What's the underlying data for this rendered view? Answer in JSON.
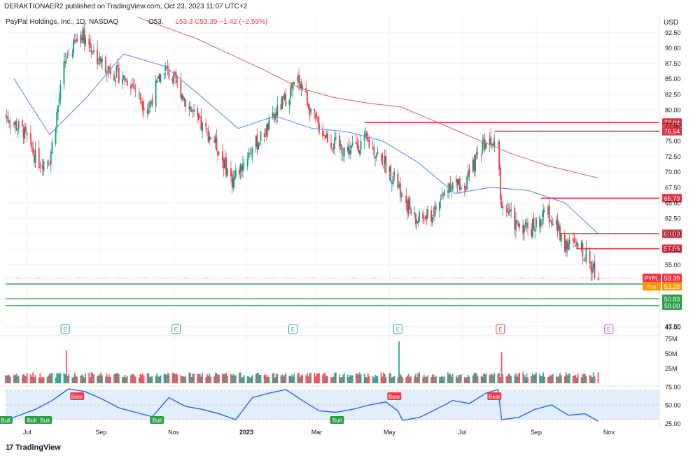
{
  "header": {
    "published_line": "DERAKTIONAER2 published on TradingView.com, Oct 23, 2023 11:07 UTC+2",
    "symbol_line": "PayPal Holdings, Inc., 1D, NASDAQ",
    "ohlc_fragment": "O53.",
    "close_fragment": "L53.3",
    "last": "C53.39",
    "change": "−1.42 (−2.59%)"
  },
  "currency_label": "USD",
  "branding": {
    "logo": "17",
    "name": "TradingView"
  },
  "colors": {
    "up": "#089981",
    "down": "#f23645",
    "ma_short": "#5b8def",
    "ma_long": "#e06a6a",
    "resistance": "#e0313f",
    "support": "#2e9e46",
    "rsi_line": "#2962ff",
    "rsi_band": "#e3eefc",
    "axis_text": "#131722",
    "grid": "#f0f3fa",
    "pre_label": "#ff9800",
    "earnings_green": "#26a69a",
    "earnings_red": "#f23645",
    "earnings_future": "#e040fb"
  },
  "chart_data": [
    {
      "type": "candlestick",
      "title": "PayPal Holdings, Inc., 1D, NASDAQ",
      "xlabel": "",
      "ylabel": "",
      "x_ticks": [
        "Jul",
        "Sep",
        "Nov",
        "2023",
        "Mar",
        "May",
        "Jul",
        "Sep",
        "Nov"
      ],
      "y_ticks": [
        "92.50",
        "90.00",
        "87.50",
        "85.00",
        "82.50",
        "80.00",
        "77.50",
        "75.00",
        "72.50",
        "70.00",
        "67.50",
        "65.00",
        "62.50",
        "60.00",
        "57.50",
        "55.00",
        "47.50",
        "45.00"
      ],
      "ylim": [
        45,
        95
      ],
      "approx_close_path": [
        {
          "date": "2022-06-13",
          "close": 79.0
        },
        {
          "date": "2022-06-28",
          "close": 76.5
        },
        {
          "date": "2022-07-10",
          "close": 71.5
        },
        {
          "date": "2022-07-20",
          "close": 72.0
        },
        {
          "date": "2022-08-02",
          "close": 88.0
        },
        {
          "date": "2022-08-16",
          "close": 92.5
        },
        {
          "date": "2022-08-30",
          "close": 88.0
        },
        {
          "date": "2022-09-12",
          "close": 86.0
        },
        {
          "date": "2022-09-26",
          "close": 84.5
        },
        {
          "date": "2022-10-10",
          "close": 80.0
        },
        {
          "date": "2022-10-24",
          "close": 87.0
        },
        {
          "date": "2022-11-07",
          "close": 83.0
        },
        {
          "date": "2022-11-21",
          "close": 78.0
        },
        {
          "date": "2022-12-05",
          "close": 75.0
        },
        {
          "date": "2022-12-20",
          "close": 68.5
        },
        {
          "date": "2023-01-03",
          "close": 73.0
        },
        {
          "date": "2023-01-17",
          "close": 76.5
        },
        {
          "date": "2023-01-31",
          "close": 81.0
        },
        {
          "date": "2023-02-14",
          "close": 85.0
        },
        {
          "date": "2023-02-28",
          "close": 78.0
        },
        {
          "date": "2023-03-14",
          "close": 74.5
        },
        {
          "date": "2023-03-28",
          "close": 73.5
        },
        {
          "date": "2023-04-11",
          "close": 75.0
        },
        {
          "date": "2023-04-25",
          "close": 72.0
        },
        {
          "date": "2023-05-09",
          "close": 67.5
        },
        {
          "date": "2023-05-23",
          "close": 62.0
        },
        {
          "date": "2023-06-06",
          "close": 63.0
        },
        {
          "date": "2023-06-20",
          "close": 68.0
        },
        {
          "date": "2023-07-04",
          "close": 68.0
        },
        {
          "date": "2023-07-18",
          "close": 74.5
        },
        {
          "date": "2023-07-31",
          "close": 76.0
        },
        {
          "date": "2023-08-02",
          "close": 65.5
        },
        {
          "date": "2023-08-15",
          "close": 61.5
        },
        {
          "date": "2023-08-28",
          "close": 61.0
        },
        {
          "date": "2023-09-11",
          "close": 63.5
        },
        {
          "date": "2023-09-25",
          "close": 58.5
        },
        {
          "date": "2023-10-09",
          "close": 57.5
        },
        {
          "date": "2023-10-23",
          "close": 53.39
        }
      ],
      "moving_averages": [
        {
          "name": "",
          "points": [
            {
              "date": "2022-06-20",
              "value": 85.0
            },
            {
              "date": "2022-07-20",
              "value": 76.0
            },
            {
              "date": "2022-08-20",
              "value": 82.0
            },
            {
              "date": "2022-09-20",
              "value": 89.0
            },
            {
              "date": "2022-10-25",
              "value": 87.0
            },
            {
              "date": "2022-11-25",
              "value": 82.0
            },
            {
              "date": "2022-12-25",
              "value": 77.0
            },
            {
              "date": "2023-01-25",
              "value": 79.0
            },
            {
              "date": "2023-02-25",
              "value": 77.0
            },
            {
              "date": "2023-03-25",
              "value": 76.5
            },
            {
              "date": "2023-04-25",
              "value": 75.0
            },
            {
              "date": "2023-05-25",
              "value": 71.5
            },
            {
              "date": "2023-06-25",
              "value": 66.5
            },
            {
              "date": "2023-07-25",
              "value": 67.5
            },
            {
              "date": "2023-08-25",
              "value": 67.0
            },
            {
              "date": "2023-09-25",
              "value": 65.0
            },
            {
              "date": "2023-10-23",
              "value": 60.0
            }
          ]
        },
        {
          "name": "",
          "points": [
            {
              "date": "2022-10-01",
              "value": 95.0
            },
            {
              "date": "2022-11-20",
              "value": 91.5
            },
            {
              "date": "2023-01-15",
              "value": 86.5
            },
            {
              "date": "2023-02-15",
              "value": 83.5
            },
            {
              "date": "2023-03-15",
              "value": 82.0
            },
            {
              "date": "2023-04-15",
              "value": 81.0
            },
            {
              "date": "2023-05-10",
              "value": 80.5
            },
            {
              "date": "2023-06-10",
              "value": 78.0
            },
            {
              "date": "2023-07-10",
              "value": 75.5
            },
            {
              "date": "2023-08-10",
              "value": 73.0
            },
            {
              "date": "2023-09-10",
              "value": 71.0
            },
            {
              "date": "2023-10-23",
              "value": 69.0
            }
          ]
        }
      ],
      "resistance_lines": [
        {
          "label": "77.94",
          "value": 77.94,
          "from_date": "2023-04-10"
        },
        {
          "label": "76.54",
          "value": 76.54,
          "from_date": "2023-07-28"
        },
        {
          "label": "65.73",
          "value": 65.73,
          "from_date": "2023-09-05"
        },
        {
          "label": "60.00",
          "value": 60.0,
          "from_date": "2023-09-20"
        },
        {
          "label": "57.59",
          "value": 57.59,
          "from_date": "2023-10-05"
        }
      ],
      "support_lines": [
        {
          "label": "52.64",
          "value": 52.64
        },
        {
          "label": "50.83",
          "value": 50.83
        },
        {
          "label": "50.00",
          "value": 50.0
        }
      ],
      "price_labels": [
        {
          "name": "PYPL",
          "value": "53.39"
        },
        {
          "name": "Pre",
          "value": "53.28"
        }
      ],
      "earnings_markers": [
        {
          "date": "2022-08-02",
          "label": "E",
          "kind": "reported_beat"
        },
        {
          "date": "2022-11-03",
          "label": "E",
          "kind": "reported_beat"
        },
        {
          "date": "2023-02-09",
          "label": "E",
          "kind": "reported_beat"
        },
        {
          "date": "2023-05-08",
          "label": "E",
          "kind": "reported_beat"
        },
        {
          "date": "2023-08-02",
          "label": "E",
          "kind": "reported_miss"
        },
        {
          "date": "2023-11-01",
          "label": "E",
          "kind": "upcoming"
        }
      ]
    },
    {
      "type": "bar",
      "title": "",
      "xlabel": "",
      "ylabel": "",
      "y_ticks": [
        "75M",
        "50M",
        "25M"
      ],
      "ylim": [
        0,
        75
      ],
      "y_unit": "M",
      "spikes": [
        {
          "date": "2022-08-03",
          "value": 55
        },
        {
          "date": "2023-05-09",
          "value": 70
        },
        {
          "date": "2023-08-03",
          "value": 52
        }
      ],
      "typical_value": 13
    },
    {
      "type": "line",
      "title": "",
      "xlabel": "",
      "ylabel": "",
      "y_ticks": [
        "75.00",
        "50.00",
        "25.00"
      ],
      "ylim": [
        25,
        80
      ],
      "band": [
        30,
        70
      ],
      "points": [
        {
          "date": "2022-06-13",
          "value": 29
        },
        {
          "date": "2022-06-28",
          "value": 38
        },
        {
          "date": "2022-07-08",
          "value": 44
        },
        {
          "date": "2022-07-22",
          "value": 56
        },
        {
          "date": "2022-08-05",
          "value": 72
        },
        {
          "date": "2022-08-19",
          "value": 68
        },
        {
          "date": "2022-09-02",
          "value": 58
        },
        {
          "date": "2022-09-16",
          "value": 46
        },
        {
          "date": "2022-09-30",
          "value": 40
        },
        {
          "date": "2022-10-14",
          "value": 34
        },
        {
          "date": "2022-10-28",
          "value": 60
        },
        {
          "date": "2022-11-11",
          "value": 48
        },
        {
          "date": "2022-11-25",
          "value": 44
        },
        {
          "date": "2022-12-09",
          "value": 38
        },
        {
          "date": "2022-12-23",
          "value": 30
        },
        {
          "date": "2023-01-06",
          "value": 60
        },
        {
          "date": "2023-01-20",
          "value": 66
        },
        {
          "date": "2023-02-03",
          "value": 71
        },
        {
          "date": "2023-02-17",
          "value": 56
        },
        {
          "date": "2023-03-03",
          "value": 42
        },
        {
          "date": "2023-03-17",
          "value": 40
        },
        {
          "date": "2023-03-31",
          "value": 44
        },
        {
          "date": "2023-04-14",
          "value": 50
        },
        {
          "date": "2023-04-28",
          "value": 54
        },
        {
          "date": "2023-05-08",
          "value": 42
        },
        {
          "date": "2023-05-12",
          "value": 29
        },
        {
          "date": "2023-05-26",
          "value": 33
        },
        {
          "date": "2023-06-09",
          "value": 44
        },
        {
          "date": "2023-06-23",
          "value": 56
        },
        {
          "date": "2023-07-07",
          "value": 52
        },
        {
          "date": "2023-07-21",
          "value": 66
        },
        {
          "date": "2023-07-31",
          "value": 71
        },
        {
          "date": "2023-08-03",
          "value": 30
        },
        {
          "date": "2023-08-17",
          "value": 33
        },
        {
          "date": "2023-08-31",
          "value": 44
        },
        {
          "date": "2023-09-14",
          "value": 50
        },
        {
          "date": "2023-09-28",
          "value": 36
        },
        {
          "date": "2023-10-12",
          "value": 38
        },
        {
          "date": "2023-10-23",
          "value": 28
        }
      ],
      "signals": [
        {
          "date": "2022-06-13",
          "label": "Bull"
        },
        {
          "date": "2022-07-05",
          "label": "Bull"
        },
        {
          "date": "2022-07-16",
          "label": "Bull"
        },
        {
          "date": "2022-08-12",
          "label": "Bear"
        },
        {
          "date": "2022-10-18",
          "label": "Bull"
        },
        {
          "date": "2023-03-18",
          "label": "Bull"
        },
        {
          "date": "2023-05-05",
          "label": "Bear"
        },
        {
          "date": "2023-07-28",
          "label": "Bear"
        }
      ]
    }
  ]
}
